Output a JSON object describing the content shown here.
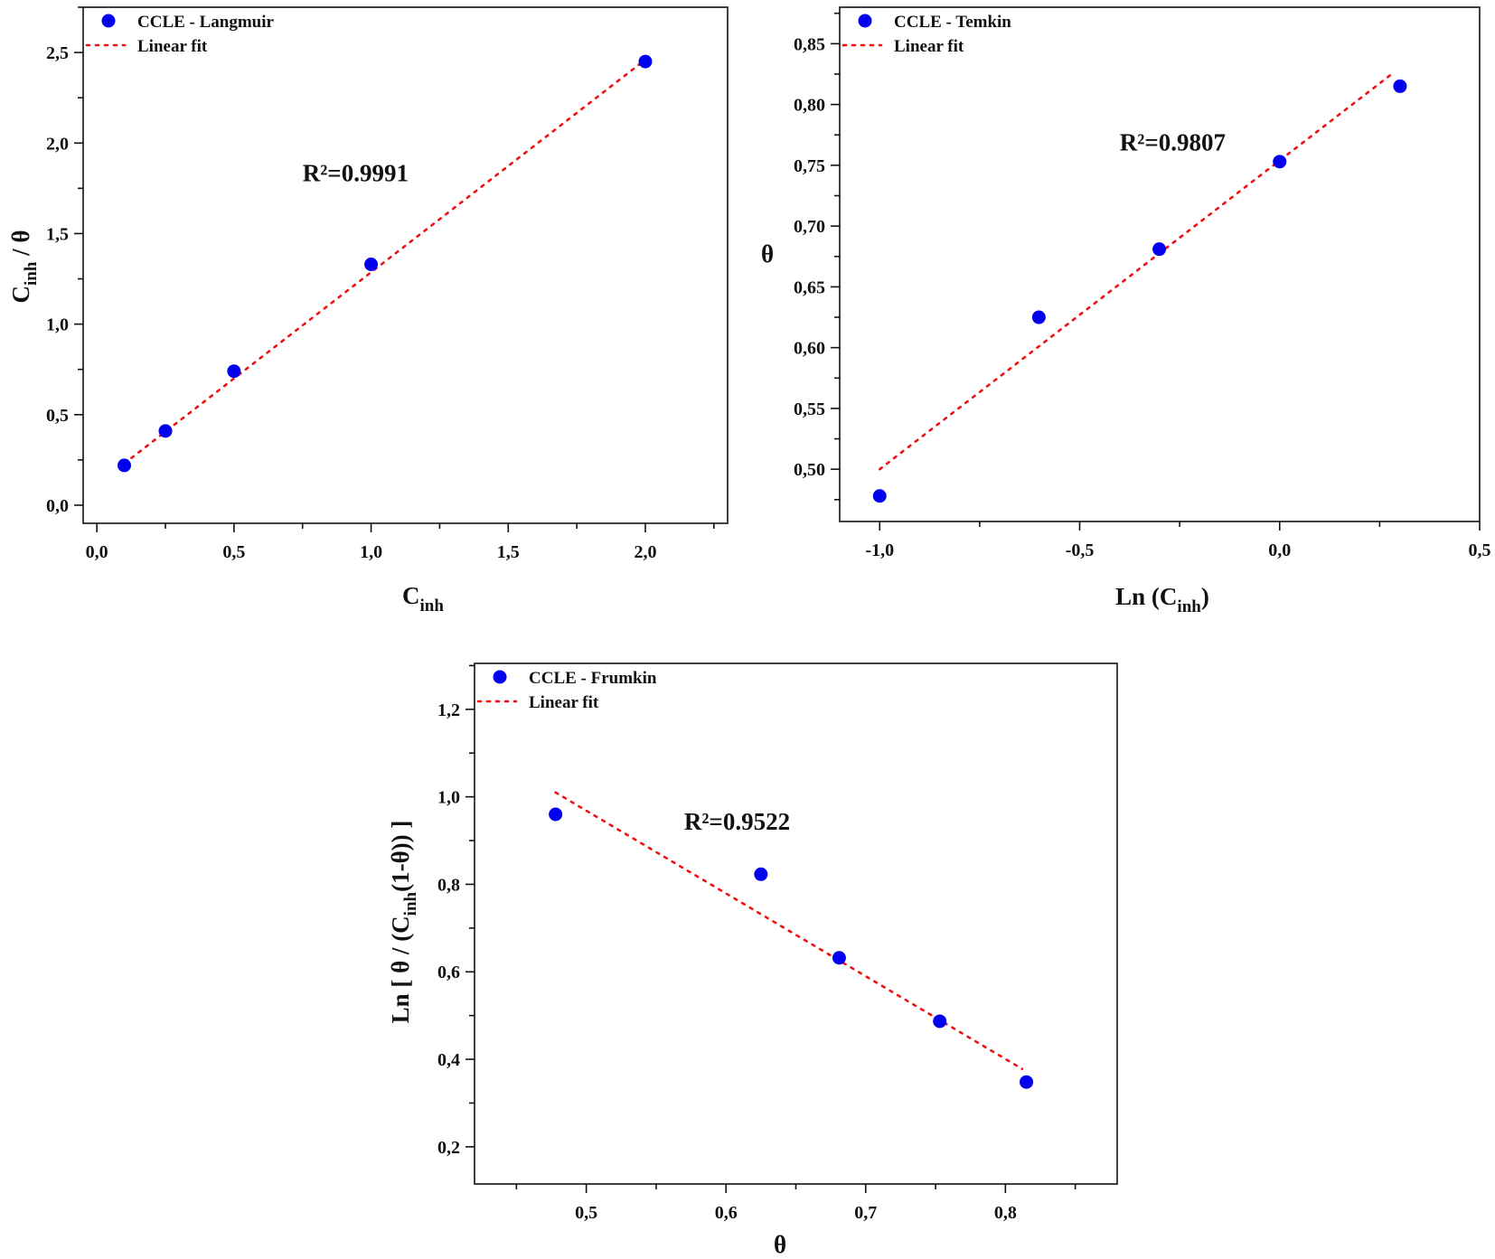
{
  "chart_data": [
    {
      "type": "scatter",
      "xlabel": {
        "main": "C",
        "sub": "inh",
        "post": ""
      },
      "ylabel": {
        "main": "C",
        "sub": "inh",
        "post": " / θ"
      },
      "xlim": [
        -0.05,
        2.3
      ],
      "ylim": [
        -0.1,
        2.75
      ],
      "xticks": [
        0.0,
        0.5,
        1.0,
        1.5,
        2.0
      ],
      "xtick_labels": [
        "0,0",
        "0,5",
        "1,0",
        "1,5",
        "2,0"
      ],
      "yticks": [
        0.0,
        0.5,
        1.0,
        1.5,
        2.0,
        2.5
      ],
      "ytick_labels": [
        "0,0",
        "0,5",
        "1,0",
        "1,5",
        "2,0",
        "2,5"
      ],
      "series": [
        {
          "name": "CCLE - Langmuir",
          "kind": "scatter",
          "color": "#0000ee",
          "x": [
            0.1,
            0.25,
            0.5,
            1.0,
            2.0
          ],
          "y": [
            0.22,
            0.41,
            0.74,
            1.33,
            2.45
          ]
        },
        {
          "name": "Linear fit",
          "kind": "line",
          "color": "#ee1111",
          "x": [
            0.1,
            2.0
          ],
          "y": [
            0.23,
            2.46
          ]
        }
      ],
      "annotation": {
        "text": "R²=0.9991",
        "x": 0.75,
        "y": 1.79
      },
      "legend": "top-left",
      "grid": false
    },
    {
      "type": "scatter",
      "xlabel": {
        "main": "Ln (C",
        "sub": "inh",
        "post": ")"
      },
      "ylabel": {
        "main": "θ",
        "sub": "",
        "post": ""
      },
      "xlim": [
        -1.1,
        0.5
      ],
      "ylim": [
        0.457,
        0.88
      ],
      "xticks": [
        -1.0,
        -0.5,
        0.0,
        0.5
      ],
      "xtick_labels": [
        "-1,0",
        "-0,5",
        "0,0",
        "0,5"
      ],
      "yticks": [
        0.5,
        0.55,
        0.6,
        0.65,
        0.7,
        0.75,
        0.8,
        0.85
      ],
      "ytick_labels": [
        "0,50",
        "0,55",
        "0,60",
        "0,65",
        "0,70",
        "0,75",
        "0,80",
        "0,85"
      ],
      "series": [
        {
          "name": "CCLE - Temkin",
          "kind": "scatter",
          "color": "#0000ee",
          "x": [
            -1.0,
            -0.602,
            -0.301,
            0.0,
            0.301
          ],
          "y": [
            0.478,
            0.625,
            0.681,
            0.753,
            0.815
          ]
        },
        {
          "name": "Linear fit",
          "kind": "line",
          "color": "#ee1111",
          "x": [
            -1.0,
            0.28
          ],
          "y": [
            0.5,
            0.825
          ]
        }
      ],
      "annotation": {
        "text": "R²=0.9807",
        "x": -0.4,
        "y": 0.762
      },
      "legend": "top-left",
      "grid": false
    },
    {
      "type": "scatter",
      "xlabel": {
        "main": "θ",
        "sub": "",
        "post": ""
      },
      "ylabel": {
        "main": "Ln [ θ / (C",
        "sub": "inh",
        "post": "(1-θ)) ]"
      },
      "xlim": [
        0.42,
        0.88
      ],
      "ylim": [
        0.115,
        1.305
      ],
      "xticks": [
        0.5,
        0.6,
        0.7,
        0.8
      ],
      "xtick_labels": [
        "0,5",
        "0,6",
        "0,7",
        "0,8"
      ],
      "yticks": [
        0.2,
        0.4,
        0.6,
        0.8,
        1.0,
        1.2
      ],
      "ytick_labels": [
        "0,2",
        "0,4",
        "0,6",
        "0,8",
        "1,0",
        "1,2"
      ],
      "series": [
        {
          "name": "CCLE - Frumkin",
          "kind": "scatter",
          "color": "#0000ee",
          "x": [
            0.478,
            0.625,
            0.681,
            0.753,
            0.815
          ],
          "y": [
            0.96,
            0.823,
            0.632,
            0.487,
            0.348
          ]
        },
        {
          "name": "Linear fit",
          "kind": "line",
          "color": "#ee1111",
          "x": [
            0.478,
            0.812
          ],
          "y": [
            1.01,
            0.378
          ]
        }
      ],
      "annotation": {
        "text": "R²=0.9522",
        "x": 0.57,
        "y": 0.925
      },
      "legend": "top-left",
      "grid": false
    }
  ]
}
